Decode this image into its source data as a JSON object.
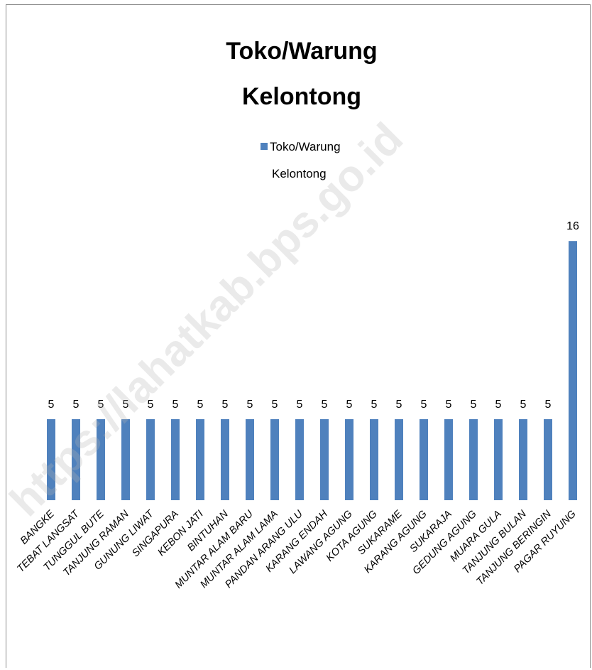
{
  "chart_data": {
    "type": "bar",
    "title_lines": [
      "Toko/Warung",
      "Kelontong"
    ],
    "legend": {
      "series_name_lines": [
        "Toko/Warung",
        "Kelontong"
      ],
      "color": "#4f81bd"
    },
    "series": [
      {
        "name": "Toko/Warung Kelontong",
        "color": "#4f81bd",
        "values": [
          5,
          5,
          5,
          5,
          5,
          5,
          5,
          5,
          5,
          5,
          5,
          5,
          5,
          5,
          5,
          5,
          5,
          5,
          5,
          5,
          5,
          16
        ]
      }
    ],
    "categories": [
      "BANGKE",
      "TEBAT LANGSAT",
      "TUNGGUL BUTE",
      "TANJUNG RAMAN",
      "GUNUNG LIWAT",
      "SINGAPURA",
      "KEBON JATI",
      "BINTUHAN",
      "MUNTAR ALAM BARU",
      "MUNTAR ALAM LAMA",
      "PANDAN ARANG ULU",
      "KARANG ENDAH",
      "LAWANG AGUNG",
      "KOTA AGUNG",
      "SUKARAME",
      "KARANG AGUNG",
      "SUKARAJA",
      "GEDUNG AGUNG",
      "MUARA GULA",
      "TANJUNG BULAN",
      "TANJUNG BERINGIN",
      "PAGAR RUYUNG"
    ],
    "data_labels": [
      "5",
      "5",
      "5",
      "5",
      "5",
      "5",
      "5",
      "5",
      "5",
      "5",
      "5",
      "5",
      "5",
      "5",
      "5",
      "5",
      "5",
      "5",
      "5",
      "5",
      "5",
      "16"
    ],
    "ylim": [
      0,
      20
    ],
    "grid": false,
    "legend_position": "top"
  },
  "watermark": "https://lahatkab.bps.go.id"
}
